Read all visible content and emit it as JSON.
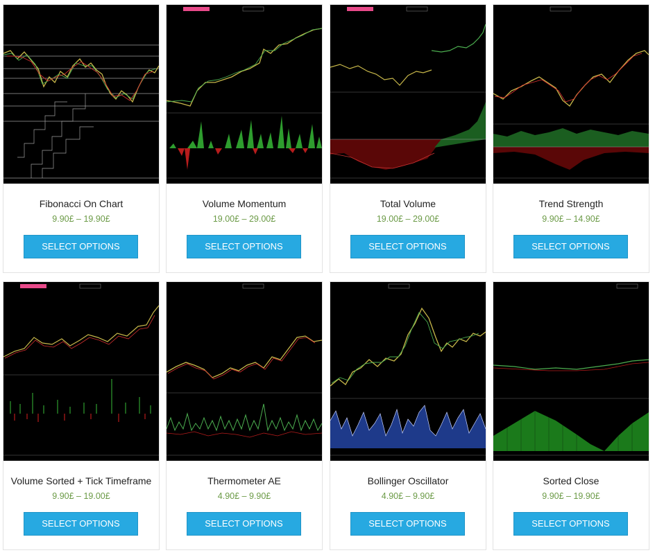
{
  "products": [
    {
      "title": "Fibonacci On Chart",
      "price": "9.90£ – 19.90£",
      "button": "SELECT OPTIONS",
      "thumb_icon": "fibonacci-chart"
    },
    {
      "title": "Volume Momentum",
      "price": "19.00£ – 29.00£",
      "button": "SELECT OPTIONS",
      "thumb_icon": "volume-momentum-chart"
    },
    {
      "title": "Total Volume",
      "price": "19.00£ – 29.00£",
      "button": "SELECT OPTIONS",
      "thumb_icon": "total-volume-chart"
    },
    {
      "title": "Trend Strength",
      "price": "9.90£ – 14.90£",
      "button": "SELECT OPTIONS",
      "thumb_icon": "trend-strength-chart"
    },
    {
      "title": "Volume Sorted + Tick Timeframe",
      "price": "9.90£ – 19.00£",
      "button": "SELECT OPTIONS",
      "thumb_icon": "volume-sorted-chart"
    },
    {
      "title": "Thermometer AE",
      "price": "4.90£ – 9.90£",
      "button": "SELECT OPTIONS",
      "thumb_icon": "thermometer-chart"
    },
    {
      "title": "Bollinger Oscillator",
      "price": "4.90£ – 9.90£",
      "button": "SELECT OPTIONS",
      "thumb_icon": "bollinger-chart"
    },
    {
      "title": "Sorted Close",
      "price": "9.90£ – 19.90£",
      "button": "SELECT OPTIONS",
      "thumb_icon": "sorted-close-chart"
    }
  ],
  "colors": {
    "button": "#27a9e1",
    "price": "#6b9a46",
    "candle_up": "#4caf50",
    "candle_down": "#d32f2f",
    "candle_neutral": "#c8b84a"
  }
}
